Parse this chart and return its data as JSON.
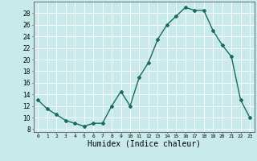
{
  "x_values": [
    0,
    1,
    2,
    3,
    4,
    5,
    6,
    7,
    8,
    9,
    10,
    11,
    12,
    13,
    14,
    15,
    16,
    17,
    18,
    19,
    20,
    21,
    22,
    23
  ],
  "y_values": [
    13.0,
    11.5,
    10.5,
    9.5,
    9.0,
    8.5,
    9.0,
    9.0,
    12.0,
    14.5,
    12.0,
    17.0,
    19.5,
    23.5,
    26.0,
    27.5,
    29.0,
    28.5,
    28.5,
    25.0,
    22.5,
    20.5,
    13.0,
    10.0
  ],
  "line_color": "#1a6b5a",
  "marker": "D",
  "marker_size": 2.0,
  "linewidth": 1.0,
  "background_color": "#c8eaea",
  "grid_color": "#ffffff",
  "xlabel": "Humidex (Indice chaleur)",
  "xlabel_fontsize": 7,
  "ylabel_ticks": [
    8,
    10,
    12,
    14,
    16,
    18,
    20,
    22,
    24,
    26,
    28
  ],
  "ylim": [
    7.5,
    30.0
  ],
  "xlim": [
    -0.5,
    23.5
  ],
  "xtick_labels": [
    "0",
    "1",
    "2",
    "3",
    "4",
    "5",
    "6",
    "7",
    "8",
    "9",
    "10",
    "11",
    "12",
    "13",
    "14",
    "15",
    "16",
    "17",
    "18",
    "19",
    "20",
    "21",
    "22",
    "23"
  ]
}
